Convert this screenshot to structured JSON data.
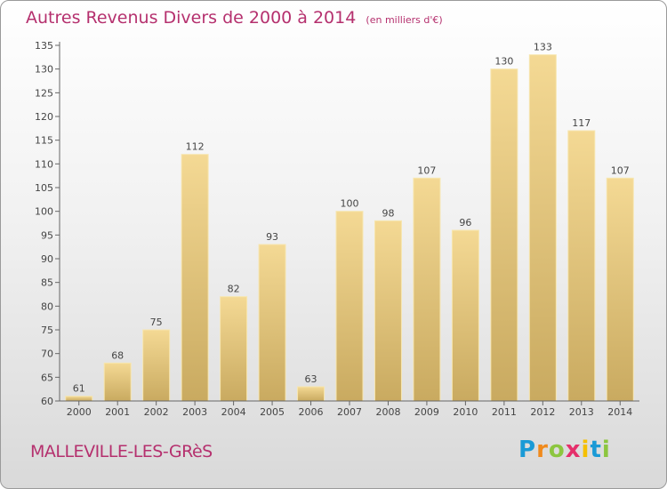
{
  "chart_data": {
    "type": "bar",
    "title": "Autres Revenus Divers de 2000 à 2014",
    "subtitle": "(en milliers d'€)",
    "categories": [
      "2000",
      "2001",
      "2002",
      "2003",
      "2004",
      "2005",
      "2006",
      "2007",
      "2008",
      "2009",
      "2010",
      "2011",
      "2012",
      "2013",
      "2014"
    ],
    "values": [
      61,
      68,
      75,
      112,
      82,
      93,
      63,
      100,
      98,
      107,
      96,
      130,
      133,
      117,
      107
    ],
    "value_labels": [
      "61",
      "68",
      "75",
      "112",
      "82",
      "93",
      "63",
      "100",
      "98",
      "107",
      "96",
      "130",
      "133",
      "117",
      "107"
    ],
    "ylim": [
      60,
      135
    ],
    "yticks": [
      60,
      65,
      70,
      75,
      80,
      85,
      90,
      95,
      100,
      105,
      110,
      115,
      120,
      125,
      130,
      135
    ],
    "ytick_labels": [
      "60",
      "65",
      "70",
      "75",
      "80",
      "85",
      "90",
      "95",
      "100",
      "105",
      "110",
      "115",
      "120",
      "125",
      "130",
      "135"
    ],
    "grid": false,
    "bar_color": "#e5c67a"
  },
  "footer": {
    "city": "MALLEVILLE-LES-GRèS",
    "brand": "Proxiti",
    "brand_letters": [
      "P",
      "r",
      "o",
      "x",
      "i",
      "t",
      "i"
    ],
    "brand_colors": [
      "#1a9ad6",
      "#f08a1c",
      "#8cc63f",
      "#e52f6b",
      "#f5c000",
      "#1a9ad6",
      "#8cc63f"
    ]
  }
}
